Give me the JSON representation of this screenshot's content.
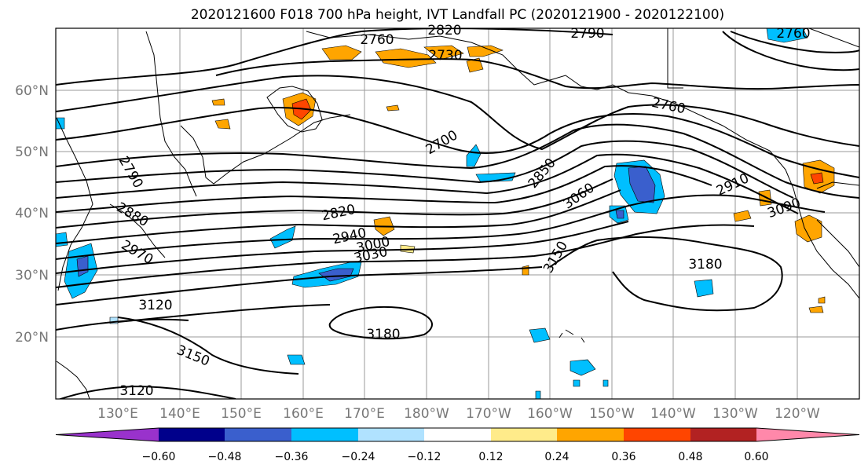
{
  "title": "2020121600 F018 700 hPa height, IVT Landfall PC (2020121900 - 2020122100)",
  "latitude_labels": [
    "60°N",
    "50°N",
    "40°N",
    "30°N",
    "20°N"
  ],
  "longitude_labels": [
    "130°E",
    "140°E",
    "150°E",
    "160°E",
    "170°E",
    "180°W",
    "170°W",
    "160°W",
    "150°W",
    "140°W",
    "130°W",
    "120°W"
  ],
  "contour_labels": [
    "2760",
    "2820",
    "2790",
    "2730",
    "2760",
    "2700",
    "2790",
    "2880",
    "2970",
    "2820",
    "2940",
    "3000",
    "3030",
    "3120",
    "3150",
    "3120",
    "3180",
    "3180",
    "3150",
    "3060",
    "2850",
    "2910",
    "3090",
    "2760",
    "2790"
  ],
  "colorbar": {
    "ticks": [
      "−0.60",
      "−0.48",
      "−0.36",
      "−0.24",
      "−0.12",
      "0.12",
      "0.24",
      "0.36",
      "0.48",
      "0.60"
    ],
    "colors": [
      "#9932cc",
      "#00008b",
      "#3a5fcd",
      "#00bfff",
      "#b0e2ff",
      "#ffffff",
      "#ffeb8a",
      "#ffa500",
      "#ff4500",
      "#b22222",
      "#ff88aa"
    ]
  },
  "pc_colors": {
    "positive_weak": "#ffeb8a",
    "positive": "#ffa500",
    "positive_strong": "#ff4500",
    "negative_weak": "#b0e2ff",
    "negative": "#00bfff",
    "negative_strong": "#3a5fcd"
  }
}
